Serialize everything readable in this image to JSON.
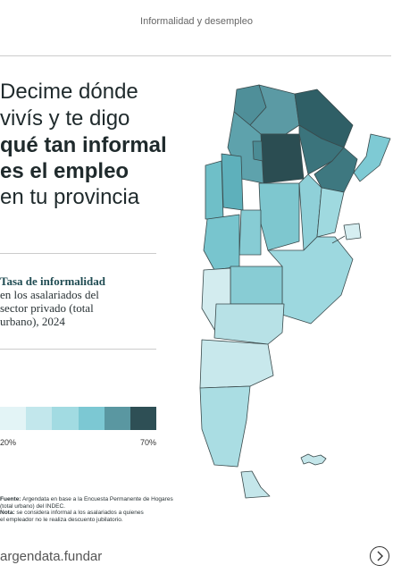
{
  "header": {
    "title": "Informalidad y desempleo"
  },
  "headline": {
    "lines": [
      "Decime dónde",
      "vivís y te digo",
      "qué tan informal",
      "es el empleo",
      "en tu provincia"
    ]
  },
  "legend": {
    "title": "Tasa de informalidad",
    "description": [
      "en los asalariados del",
      "sector privado (total",
      "urbano), 2024"
    ],
    "colors": [
      "#e3f4f6",
      "#c2e7ec",
      "#a2dbe2",
      "#7cc8d3",
      "#5a97a1",
      "#2e4f55"
    ],
    "min_label": "20%",
    "max_label": "70%"
  },
  "source": {
    "source_label": "Fuente:",
    "source_lines": [
      "Argendata en base a la Encuesta Permanente de Hogares",
      "(total urbano) del INDEC."
    ],
    "note_label": "Nota:",
    "note_lines": [
      "se considera informal a los asalariados a quienes",
      "el empleador no le realiza descuento jubilatorio."
    ]
  },
  "footer": {
    "brand": "argendata.fundar"
  }
}
